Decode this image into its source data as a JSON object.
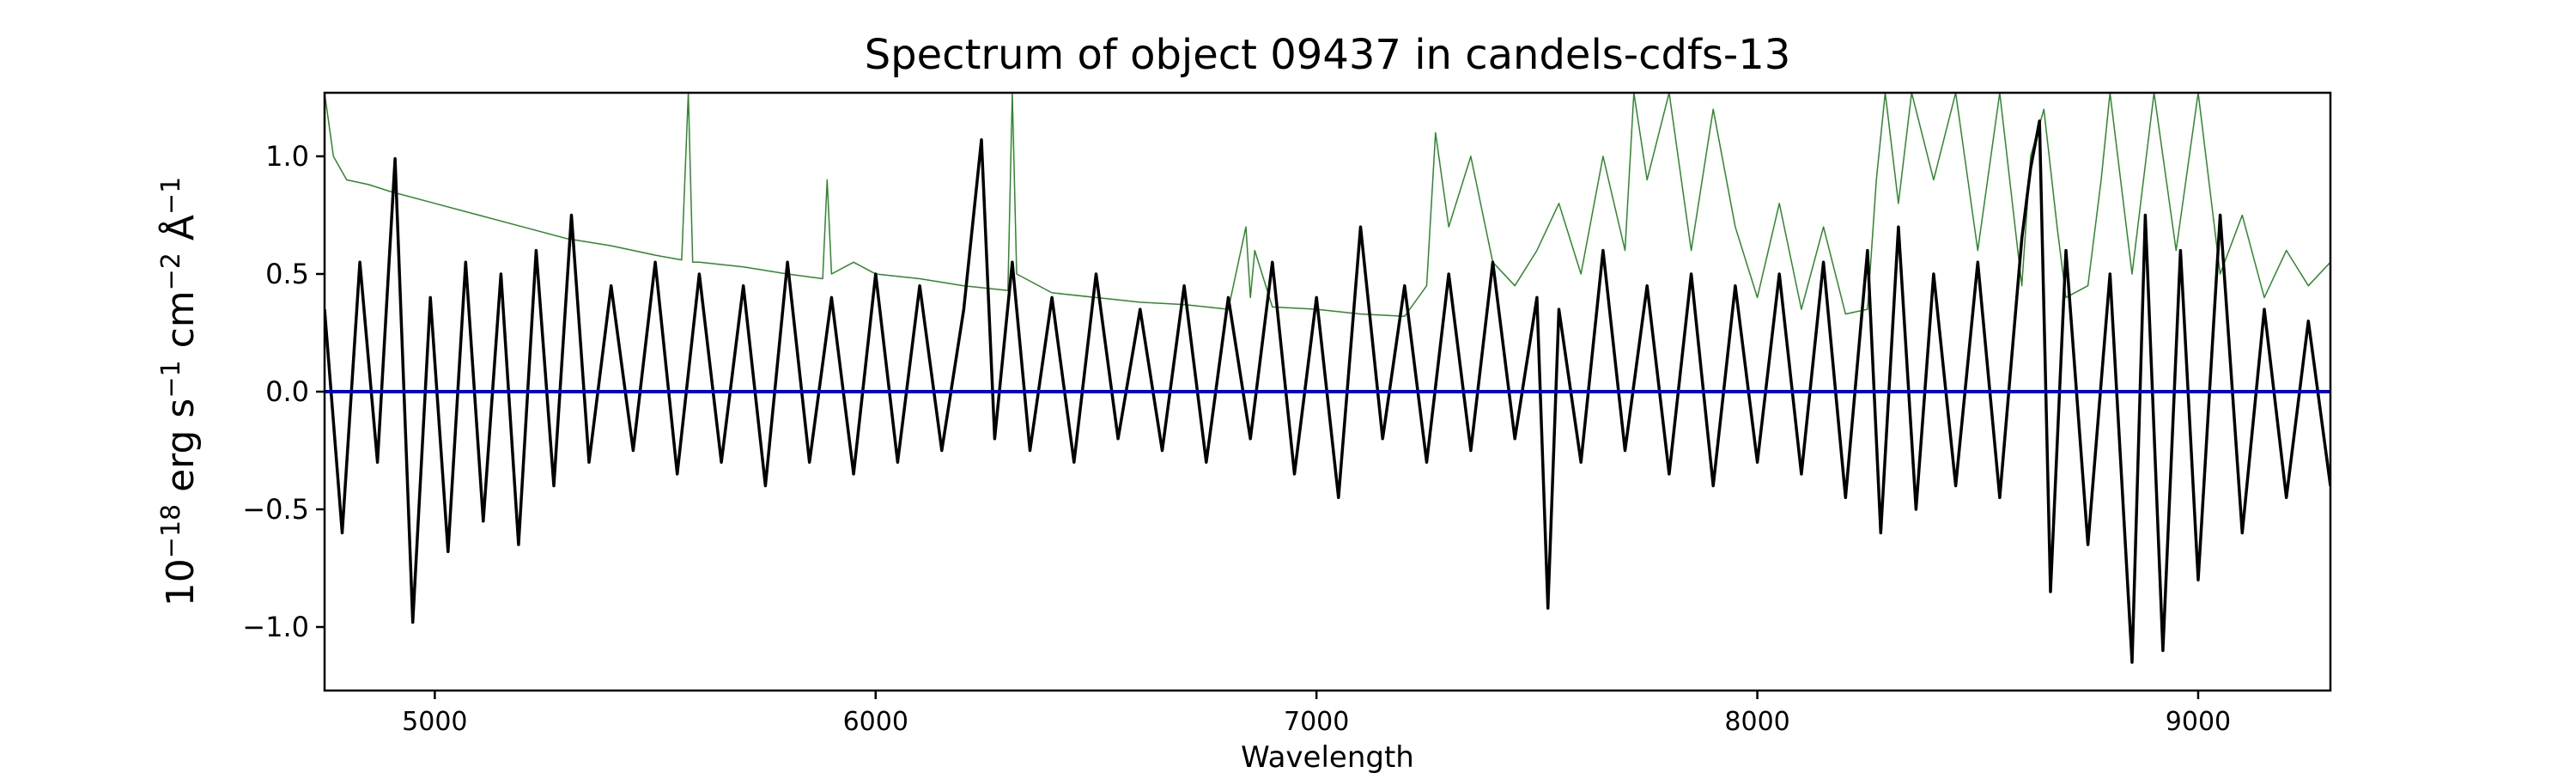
{
  "chart_data": {
    "type": "line",
    "title": "Spectrum of object 09437 in candels-cdfs-13",
    "xlabel": "Wavelength",
    "ylabel_parts": [
      "10",
      "−18",
      " erg s",
      "−1",
      " cm",
      "−2",
      " Å",
      "−1"
    ],
    "xlim": [
      4750,
      9300
    ],
    "ylim": [
      -1.27,
      1.27
    ],
    "x_ticks": [
      5000,
      6000,
      7000,
      8000,
      9000
    ],
    "x_tick_labels": [
      "5000",
      "6000",
      "7000",
      "8000",
      "9000"
    ],
    "y_ticks": [
      -1.0,
      -0.5,
      0.0,
      0.5,
      1.0
    ],
    "y_tick_labels": [
      "−1.0",
      "−0.5",
      "0.0",
      "0.5",
      "1.0"
    ],
    "grid": false,
    "colors": {
      "flux": "#000000",
      "error": "#2a8a2a",
      "zero": "#0000cc"
    },
    "series": [
      {
        "role": "flux",
        "x": [
          4750,
          4790,
          4830,
          4870,
          4910,
          4950,
          4990,
          5030,
          5070,
          5110,
          5150,
          5190,
          5230,
          5270,
          5310,
          5350,
          5400,
          5450,
          5500,
          5550,
          5600,
          5650,
          5700,
          5750,
          5800,
          5850,
          5900,
          5950,
          6000,
          6050,
          6100,
          6150,
          6200,
          6240,
          6270,
          6310,
          6350,
          6400,
          6450,
          6500,
          6550,
          6600,
          6650,
          6700,
          6750,
          6800,
          6850,
          6900,
          6950,
          7000,
          7050,
          7100,
          7150,
          7200,
          7250,
          7300,
          7350,
          7400,
          7450,
          7500,
          7525,
          7550,
          7600,
          7650,
          7700,
          7750,
          7800,
          7850,
          7900,
          7950,
          8000,
          8050,
          8100,
          8150,
          8200,
          8250,
          8280,
          8320,
          8360,
          8400,
          8450,
          8500,
          8550,
          8600,
          8620,
          8640,
          8665,
          8700,
          8750,
          8800,
          8850,
          8880,
          8920,
          8960,
          9000,
          9050,
          9100,
          9150,
          9200,
          9250,
          9300
        ],
        "y": [
          0.35,
          -0.6,
          0.55,
          -0.3,
          0.99,
          -0.98,
          0.4,
          -0.68,
          0.55,
          -0.55,
          0.5,
          -0.65,
          0.6,
          -0.4,
          0.75,
          -0.3,
          0.45,
          -0.25,
          0.55,
          -0.35,
          0.5,
          -0.3,
          0.45,
          -0.4,
          0.55,
          -0.3,
          0.4,
          -0.35,
          0.5,
          -0.3,
          0.45,
          -0.25,
          0.35,
          1.07,
          -0.2,
          0.55,
          -0.25,
          0.4,
          -0.3,
          0.5,
          -0.2,
          0.35,
          -0.25,
          0.45,
          -0.3,
          0.4,
          -0.2,
          0.55,
          -0.35,
          0.4,
          -0.45,
          0.7,
          -0.2,
          0.45,
          -0.3,
          0.5,
          -0.25,
          0.55,
          -0.2,
          0.4,
          -0.92,
          0.35,
          -0.3,
          0.6,
          -0.25,
          0.45,
          -0.35,
          0.5,
          -0.4,
          0.45,
          -0.3,
          0.5,
          -0.35,
          0.55,
          -0.45,
          0.6,
          -0.6,
          0.7,
          -0.5,
          0.5,
          -0.4,
          0.55,
          -0.45,
          0.65,
          0.95,
          1.15,
          -0.85,
          0.6,
          -0.65,
          0.5,
          -1.15,
          0.75,
          -1.1,
          0.6,
          -0.8,
          0.75,
          -0.6,
          0.35,
          -0.45,
          0.3,
          -0.4
        ]
      },
      {
        "role": "error",
        "x": [
          4750,
          4770,
          4800,
          4850,
          4900,
          5000,
          5100,
          5200,
          5300,
          5400,
          5500,
          5560,
          5575,
          5585,
          5600,
          5700,
          5800,
          5880,
          5890,
          5900,
          5950,
          6000,
          6100,
          6200,
          6300,
          6310,
          6320,
          6400,
          6500,
          6600,
          6700,
          6800,
          6840,
          6850,
          6860,
          6900,
          7000,
          7100,
          7200,
          7250,
          7270,
          7300,
          7350,
          7400,
          7450,
          7500,
          7550,
          7600,
          7650,
          7700,
          7720,
          7750,
          7800,
          7850,
          7900,
          7950,
          8000,
          8050,
          8100,
          8150,
          8200,
          8250,
          8270,
          8290,
          8320,
          8350,
          8400,
          8450,
          8500,
          8550,
          8600,
          8620,
          8650,
          8680,
          8700,
          8750,
          8780,
          8800,
          8850,
          8900,
          8950,
          9000,
          9050,
          9100,
          9150,
          9200,
          9250,
          9300
        ],
        "y": [
          1.27,
          1.0,
          0.9,
          0.88,
          0.85,
          0.8,
          0.75,
          0.7,
          0.65,
          0.62,
          0.58,
          0.56,
          1.27,
          0.55,
          0.55,
          0.53,
          0.5,
          0.48,
          0.9,
          0.5,
          0.55,
          0.5,
          0.48,
          0.45,
          0.43,
          1.27,
          0.5,
          0.42,
          0.4,
          0.38,
          0.37,
          0.35,
          0.7,
          0.4,
          0.6,
          0.36,
          0.35,
          0.33,
          0.32,
          0.45,
          1.1,
          0.7,
          1.0,
          0.55,
          0.45,
          0.6,
          0.8,
          0.5,
          1.0,
          0.6,
          1.27,
          0.9,
          1.27,
          0.6,
          1.2,
          0.7,
          0.4,
          0.8,
          0.35,
          0.7,
          0.33,
          0.35,
          0.9,
          1.27,
          0.8,
          1.27,
          0.9,
          1.27,
          0.6,
          1.27,
          0.45,
          1.0,
          1.2,
          0.7,
          0.4,
          0.45,
          0.9,
          1.27,
          0.5,
          1.27,
          0.6,
          1.27,
          0.5,
          0.75,
          0.4,
          0.6,
          0.45,
          0.55
        ]
      },
      {
        "role": "zero",
        "x": [
          4750,
          9300
        ],
        "y": [
          0.0,
          0.0
        ]
      }
    ]
  }
}
